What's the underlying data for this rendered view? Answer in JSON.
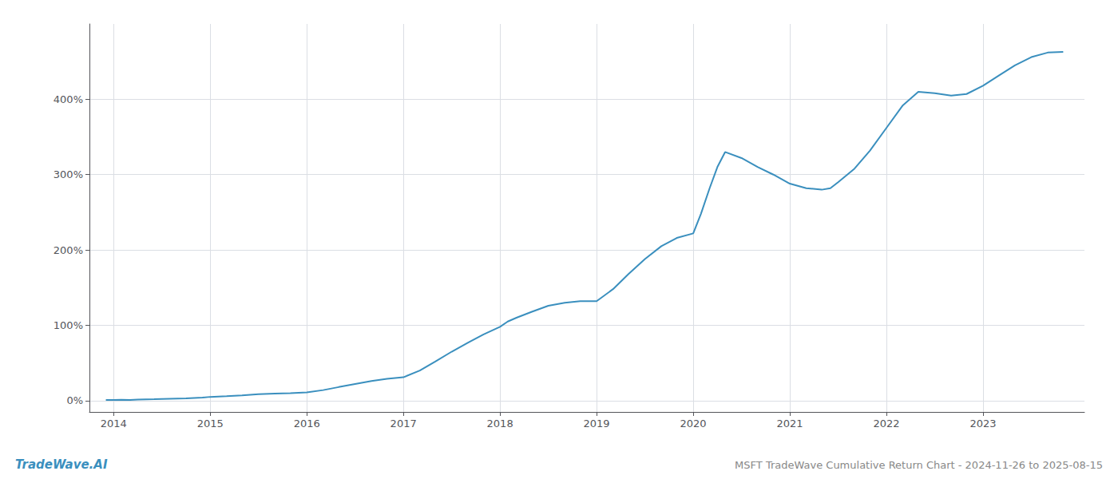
{
  "chart_data": {
    "type": "line",
    "title": "MSFT TradeWave Cumulative Return Chart - 2024-11-26 to 2025-08-15",
    "annotations": [
      "TradeWave.AI"
    ],
    "color": "#3a8fbe",
    "x": [
      2013.92,
      2014.0,
      2014.08,
      2014.17,
      2014.25,
      2014.42,
      2014.58,
      2014.75,
      2014.92,
      2015.0,
      2015.17,
      2015.33,
      2015.5,
      2015.67,
      2015.83,
      2016.0,
      2016.17,
      2016.33,
      2016.5,
      2016.67,
      2016.83,
      2017.0,
      2017.17,
      2017.33,
      2017.5,
      2017.67,
      2017.83,
      2018.0,
      2018.08,
      2018.17,
      2018.33,
      2018.5,
      2018.67,
      2018.83,
      2019.0,
      2019.17,
      2019.33,
      2019.5,
      2019.67,
      2019.83,
      2020.0,
      2020.08,
      2020.17,
      2020.25,
      2020.33,
      2020.5,
      2020.67,
      2020.83,
      2021.0,
      2021.17,
      2021.33,
      2021.42,
      2021.5,
      2021.67,
      2021.83,
      2022.0,
      2022.17,
      2022.33,
      2022.5,
      2022.67,
      2022.83,
      2023.0,
      2023.17,
      2023.33,
      2023.5,
      2023.67,
      2023.83
    ],
    "values": [
      1.0,
      1.0,
      1.2,
      1.0,
      1.5,
      2.0,
      2.5,
      3.0,
      4.0,
      5.0,
      6.0,
      7.0,
      8.5,
      9.5,
      10.0,
      11.0,
      14.0,
      18.0,
      22.0,
      26.0,
      29.0,
      31.0,
      40.0,
      52.0,
      65.0,
      77.0,
      88.0,
      98.0,
      105.0,
      110.0,
      118.0,
      126.0,
      130.0,
      132.0,
      132.0,
      148.0,
      168.0,
      188.0,
      205.0,
      216.0,
      222.0,
      248.0,
      282.0,
      310.0,
      330.0,
      322.0,
      310.0,
      300.0,
      288.0,
      282.0,
      280.0,
      282.0,
      290.0,
      308.0,
      332.0,
      362.0,
      392.0,
      410.0,
      408.0,
      405.0,
      407.0,
      418.0,
      432.0,
      445.0,
      456.0,
      462.0,
      463.0
    ],
    "xlim": [
      2013.75,
      2024.05
    ],
    "ylim": [
      -15,
      500
    ],
    "xticks": [
      2014,
      2015,
      2016,
      2017,
      2018,
      2019,
      2020,
      2021,
      2022,
      2023
    ],
    "yticks": [
      {
        "value": 0,
        "label": "0%"
      },
      {
        "value": 100,
        "label": "100%"
      },
      {
        "value": 200,
        "label": "200%"
      },
      {
        "value": 300,
        "label": "300%"
      },
      {
        "value": 400,
        "label": "400%"
      }
    ],
    "grid": true
  }
}
